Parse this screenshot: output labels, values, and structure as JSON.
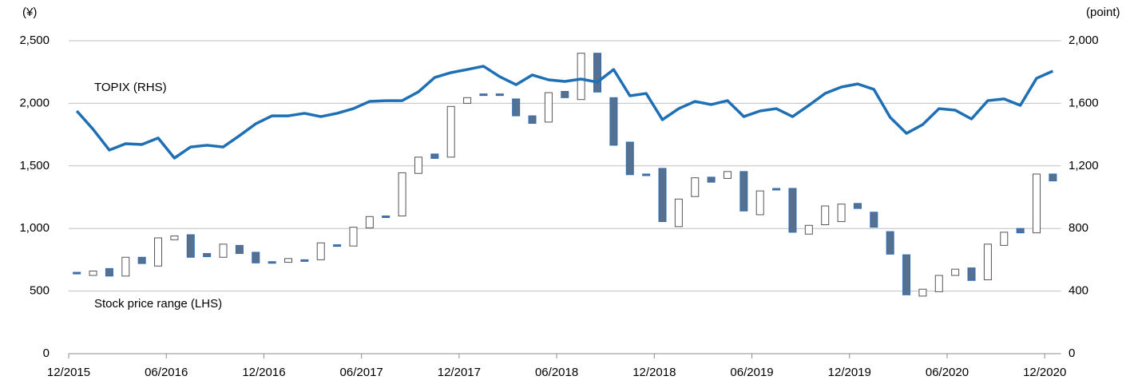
{
  "chart_data": {
    "type": "candlestick",
    "ylabel": "(¥)",
    "y2label": "(point)",
    "categories": [
      "12/2015",
      null,
      null,
      null,
      null,
      null,
      "06/2016",
      null,
      null,
      null,
      null,
      null,
      "12/2016",
      null,
      null,
      null,
      null,
      null,
      "06/2017",
      null,
      null,
      null,
      null,
      null,
      "12/2017",
      null,
      null,
      null,
      null,
      null,
      "06/2018",
      null,
      null,
      null,
      null,
      null,
      "12/2018",
      null,
      null,
      null,
      null,
      null,
      "06/2019",
      null,
      null,
      null,
      null,
      null,
      "12/2019",
      null,
      null,
      null,
      null,
      null,
      "06/2020",
      null,
      null,
      null,
      null,
      null,
      "12/2020"
    ],
    "series": [
      {
        "name": "Stock price range (LHS)",
        "up_color": "#ffffff",
        "up_edge": "#555555",
        "down_color": "#56708f",
        "down_edge": "#2f6db5",
        "open": [
          650,
          625,
          680,
          620,
          770,
          700,
          910,
          950,
          800,
          770,
          865,
          810,
          735,
          730,
          750,
          750,
          870,
          860,
          1005,
          1100,
          1100,
          1440,
          1595,
          1570,
          2000,
          2075,
          2075,
          2035,
          1900,
          1850,
          2095,
          2030,
          2400,
          2045,
          1690,
          1435,
          1480,
          1015,
          1255,
          1410,
          1400,
          1455,
          1110,
          1320,
          1320,
          955,
          1030,
          1055,
          1200,
          1130,
          975,
          790,
          460,
          495,
          625,
          685,
          590,
          865,
          1000,
          965,
          1435
        ],
        "close": [
          640,
          660,
          620,
          770,
          720,
          925,
          940,
          770,
          775,
          875,
          800,
          725,
          725,
          760,
          745,
          885,
          860,
          1010,
          1095,
          1095,
          1445,
          1570,
          1560,
          1975,
          2045,
          2065,
          2065,
          1900,
          1840,
          2085,
          2045,
          2400,
          2090,
          1665,
          1430,
          1425,
          1055,
          1235,
          1405,
          1370,
          1455,
          1140,
          1300,
          1310,
          970,
          1025,
          1180,
          1195,
          1160,
          1010,
          795,
          470,
          515,
          625,
          675,
          585,
          875,
          970,
          965,
          1435,
          1380
        ]
      },
      {
        "name": "TOPIX (RHS)",
        "type": "line",
        "axis": "y2",
        "color": "#1f6fb5",
        "values": [
          1551,
          1434,
          1301,
          1342,
          1337,
          1378,
          1250,
          1321,
          1332,
          1321,
          1393,
          1469,
          1520,
          1520,
          1536,
          1515,
          1536,
          1566,
          1612,
          1617,
          1617,
          1673,
          1765,
          1796,
          1816,
          1837,
          1770,
          1719,
          1781,
          1750,
          1740,
          1755,
          1735,
          1816,
          1648,
          1663,
          1495,
          1566,
          1612,
          1592,
          1617,
          1515,
          1551,
          1566,
          1515,
          1587,
          1663,
          1704,
          1724,
          1689,
          1510,
          1408,
          1464,
          1566,
          1556,
          1500,
          1617,
          1628,
          1587,
          1760,
          1806
        ]
      }
    ],
    "ylim": [
      0,
      2500
    ],
    "yticks": [
      0,
      500,
      {
        "value": 1000,
        "label": "1,000"
      },
      {
        "value": 1500,
        "label": "1,500"
      },
      {
        "value": 2000,
        "label": "2,000"
      },
      {
        "value": 2500,
        "label": "2,500"
      }
    ],
    "y2lim": [
      0,
      2000
    ],
    "y2ticks": [
      0,
      400,
      800,
      {
        "value": 1200,
        "label": "1,200"
      },
      {
        "value": 1600,
        "label": "1,600"
      },
      {
        "value": 2000,
        "label": "2,000"
      }
    ],
    "grid": true
  }
}
